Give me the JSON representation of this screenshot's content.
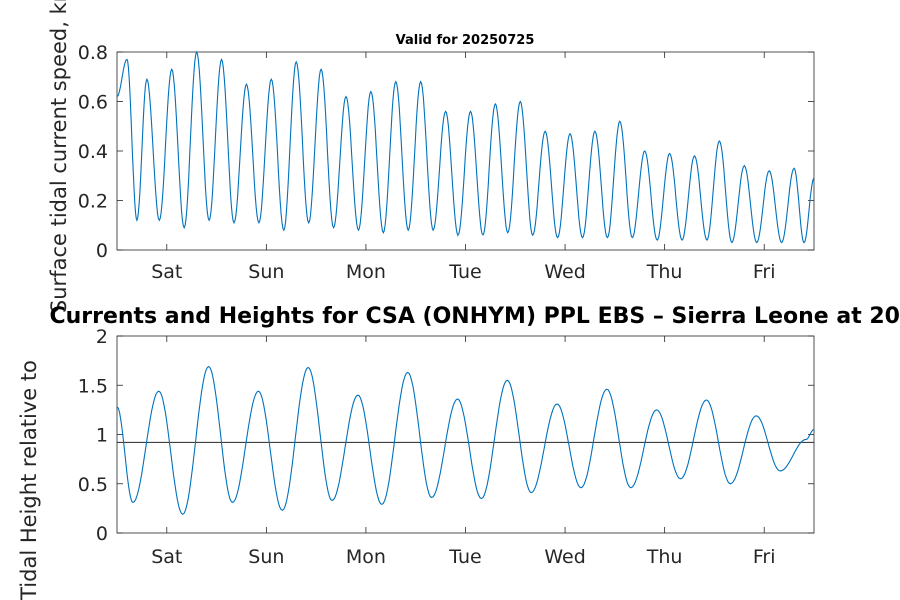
{
  "chart_data": [
    {
      "type": "line",
      "title": "Valid for 20250725",
      "ylabel": "Surface tidal current speed, kn",
      "xlabel": "",
      "ylim": [
        0,
        0.8
      ],
      "yticks": [
        0,
        0.2,
        0.4,
        0.6,
        0.8
      ],
      "ytick_labels": [
        "0",
        "0.2",
        "0.4",
        "0.6",
        "0.8"
      ],
      "xlim_days": [
        0,
        7
      ],
      "xtick_labels": [
        "Sat",
        "Sun",
        "Mon",
        "Tue",
        "Wed",
        "Thu",
        "Fri"
      ],
      "grid": false,
      "color": "#0072BD",
      "series": [
        {
          "x_days": [
            0.1,
            0.3,
            0.55,
            0.8,
            1.05,
            1.3,
            1.55,
            1.8,
            2.05,
            2.3,
            2.55,
            2.8,
            3.05,
            3.3,
            3.55,
            3.8,
            4.05,
            4.3,
            4.55,
            4.8,
            5.05,
            5.3,
            5.55,
            5.8,
            6.05,
            6.3,
            6.55,
            6.8,
            7.0
          ],
          "values": [
            0.77,
            0.69,
            0.73,
            0.8,
            0.77,
            0.67,
            0.69,
            0.76,
            0.73,
            0.62,
            0.64,
            0.68,
            0.68,
            0.56,
            0.56,
            0.59,
            0.6,
            0.48,
            0.47,
            0.48,
            0.52,
            0.4,
            0.39,
            0.38,
            0.44,
            0.34,
            0.32,
            0.33,
            0.29
          ]
        }
      ]
    },
    {
      "type": "line",
      "title": "Currents and Heights for CSA (ONHYM) PPL EBS  – Sierra Leone at 20",
      "ylabel": "Tidal Height relative to",
      "xlabel": "",
      "ylim": [
        0,
        2
      ],
      "yticks": [
        0,
        0.5,
        1,
        1.5,
        2
      ],
      "ytick_labels": [
        "0",
        "0.5",
        "1",
        "1.5",
        "2"
      ],
      "xlim_days": [
        0,
        7
      ],
      "xtick_labels": [
        "Sat",
        "Sun",
        "Mon",
        "Tue",
        "Wed",
        "Thu",
        "Fri"
      ],
      "grid": false,
      "reference_line": 0.92,
      "color": "#0072BD",
      "series": [
        {
          "x_days": [
            0.0,
            0.16,
            0.42,
            0.66,
            0.92,
            1.16,
            1.42,
            1.66,
            1.92,
            2.16,
            2.42,
            2.66,
            2.92,
            3.16,
            3.42,
            3.66,
            3.92,
            4.16,
            4.42,
            4.66,
            4.92,
            5.16,
            5.42,
            5.66,
            5.92,
            6.16,
            6.42,
            6.66,
            6.92,
            7.0
          ],
          "values": [
            1.28,
            0.31,
            1.44,
            0.19,
            1.69,
            0.31,
            1.44,
            0.23,
            1.68,
            0.33,
            1.4,
            0.29,
            1.63,
            0.36,
            1.36,
            0.35,
            1.55,
            0.41,
            1.31,
            0.46,
            1.46,
            0.46,
            1.25,
            0.55,
            1.35,
            0.5,
            1.19,
            0.63,
            0.95,
            1.05
          ]
        }
      ]
    }
  ]
}
